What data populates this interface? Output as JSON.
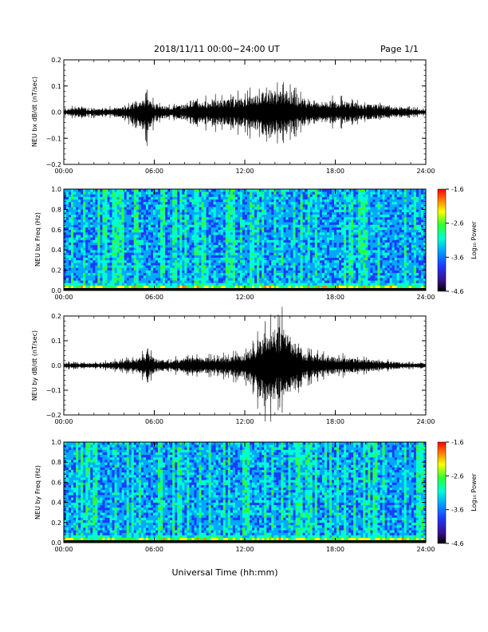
{
  "header": {
    "title": "2018/11/11  00:00−24:00 UT",
    "page": "Page 1/1"
  },
  "footer": {
    "xaxis_title": "Universal Time (hh:mm)"
  },
  "colors": {
    "waveform": "#000000",
    "spectrogram_colormap": [
      "#000000",
      "#3a0d8a",
      "#1a3cff",
      "#00a8ff",
      "#00ffd0",
      "#30ff30",
      "#ffff00",
      "#ff8000",
      "#ff0000"
    ]
  },
  "chart_data": [
    {
      "type": "line",
      "ylabel": "NEU bx dB/dt (nT/sec)",
      "xlim": [
        0,
        24
      ],
      "ylim": [
        -0.2,
        0.2
      ],
      "x_ticks": [
        "00:00",
        "06:00",
        "12:00",
        "18:00",
        "24:00"
      ],
      "y_ticks": [
        "0.2",
        "0.1",
        "0.0",
        "−0.1",
        "−0.2"
      ],
      "envelope": {
        "x": [
          0,
          1,
          2,
          3,
          4,
          5,
          5.5,
          6,
          7,
          8,
          8.5,
          9,
          10,
          11,
          12,
          13,
          13.5,
          14,
          15,
          15.5,
          16,
          17,
          18,
          19,
          20,
          21,
          22,
          23,
          24
        ],
        "upper": [
          0.01,
          0.02,
          0.01,
          0.015,
          0.02,
          0.04,
          0.06,
          0.03,
          0.02,
          0.03,
          0.05,
          0.04,
          0.045,
          0.05,
          0.055,
          0.075,
          0.09,
          0.085,
          0.07,
          0.06,
          0.05,
          0.04,
          0.045,
          0.04,
          0.03,
          0.03,
          0.02,
          0.015,
          0.01
        ],
        "lower": [
          -0.01,
          -0.02,
          -0.015,
          -0.015,
          -0.025,
          -0.06,
          -0.09,
          -0.035,
          -0.02,
          -0.03,
          -0.05,
          -0.045,
          -0.05,
          -0.05,
          -0.06,
          -0.08,
          -0.11,
          -0.09,
          -0.07,
          -0.06,
          -0.05,
          -0.04,
          -0.045,
          -0.04,
          -0.03,
          -0.025,
          -0.02,
          -0.015,
          -0.01
        ]
      }
    },
    {
      "type": "heatmap",
      "ylabel": "NEU bx Freq (Hz)",
      "xlim": [
        0,
        24
      ],
      "ylim": [
        0.0,
        1.0
      ],
      "x_ticks": [
        "00:00",
        "06:00",
        "12:00",
        "18:00",
        "24:00"
      ],
      "y_ticks": [
        "1.0",
        "0.8",
        "0.6",
        "0.4",
        "0.2",
        "0.0"
      ],
      "colorbar": {
        "label": "Log₁₀ Power",
        "range": [
          -4.6,
          -1.6
        ],
        "ticks": [
          "-1.6",
          "-2.6",
          "-3.6",
          "-4.6"
        ]
      }
    },
    {
      "type": "line",
      "ylabel": "NEU by dB/dt (nT/sec)",
      "xlim": [
        0,
        24
      ],
      "ylim": [
        -0.2,
        0.2
      ],
      "x_ticks": [
        "00:00",
        "06:00",
        "12:00",
        "18:00",
        "24:00"
      ],
      "y_ticks": [
        "0.2",
        "0.1",
        "0.0",
        "−0.1",
        "−0.2"
      ],
      "envelope": {
        "x": [
          0,
          1,
          2,
          3,
          4,
          5,
          5.5,
          6,
          7,
          8,
          9,
          10,
          11,
          12,
          12.5,
          13,
          13.5,
          14,
          14.5,
          15,
          15.5,
          16,
          17,
          18,
          19,
          20,
          21,
          22,
          23,
          24
        ],
        "upper": [
          0.01,
          0.01,
          0.01,
          0.015,
          0.02,
          0.03,
          0.05,
          0.03,
          0.02,
          0.03,
          0.035,
          0.03,
          0.035,
          0.05,
          0.07,
          0.1,
          0.12,
          0.15,
          0.15,
          0.12,
          0.08,
          0.05,
          0.04,
          0.035,
          0.03,
          0.025,
          0.02,
          0.015,
          0.01,
          0.01
        ],
        "lower": [
          -0.01,
          -0.01,
          -0.01,
          -0.015,
          -0.02,
          -0.03,
          -0.05,
          -0.03,
          -0.02,
          -0.03,
          -0.035,
          -0.03,
          -0.04,
          -0.06,
          -0.08,
          -0.13,
          -0.15,
          -0.14,
          -0.12,
          -0.11,
          -0.1,
          -0.06,
          -0.04,
          -0.035,
          -0.03,
          -0.025,
          -0.02,
          -0.015,
          -0.01,
          -0.01
        ]
      }
    },
    {
      "type": "heatmap",
      "ylabel": "NEU by Freq (Hz)",
      "xlim": [
        0,
        24
      ],
      "ylim": [
        0.0,
        1.0
      ],
      "x_ticks": [
        "00:00",
        "06:00",
        "12:00",
        "18:00",
        "24:00"
      ],
      "y_ticks": [
        "1.0",
        "0.8",
        "0.6",
        "0.4",
        "0.2",
        "0.0"
      ],
      "colorbar": {
        "label": "Log₁₀ Power",
        "range": [
          -4.6,
          -1.6
        ],
        "ticks": [
          "-1.6",
          "-2.6",
          "-3.6",
          "-4.6"
        ]
      }
    }
  ]
}
